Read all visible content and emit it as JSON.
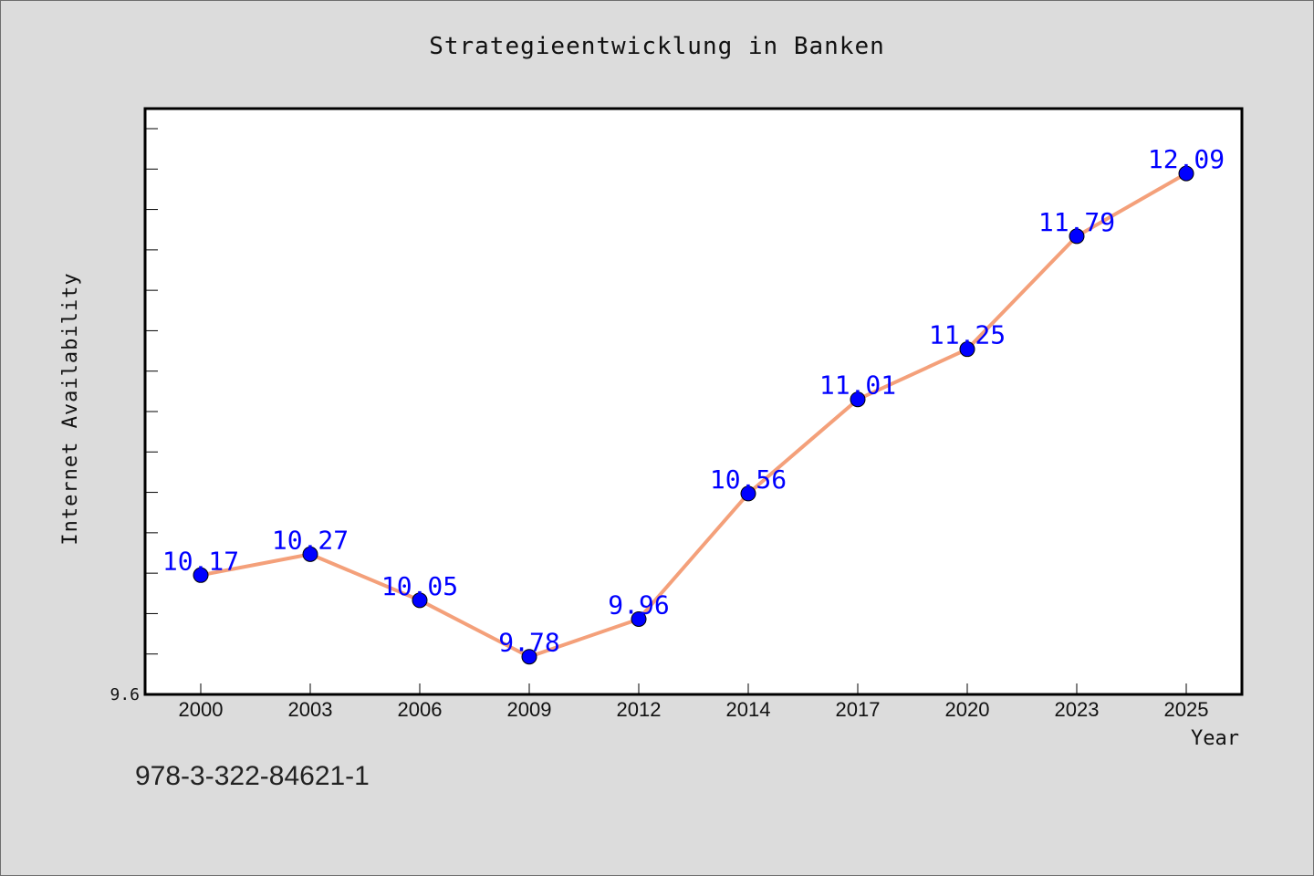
{
  "chart_data": {
    "type": "line",
    "title": "Strategieentwicklung in Banken",
    "xlabel": "Year",
    "ylabel": "Internet Availability",
    "categories": [
      "2000",
      "2003",
      "2006",
      "2009",
      "2012",
      "2014",
      "2017",
      "2020",
      "2023",
      "2025"
    ],
    "series": [
      {
        "values": [
          10.17,
          10.27,
          10.05,
          9.78,
          9.96,
          10.56,
          11.01,
          11.25,
          11.79,
          12.09
        ]
      }
    ],
    "ylim": [
      9.6,
      12.4
    ],
    "ytick_labels": [
      "9.6"
    ],
    "grid": false,
    "line_color": "#f4a07a",
    "marker_color": "#0000ff",
    "label_color": "#0000ff"
  },
  "footer": {
    "isbn": "978-3-322-84621-1"
  }
}
